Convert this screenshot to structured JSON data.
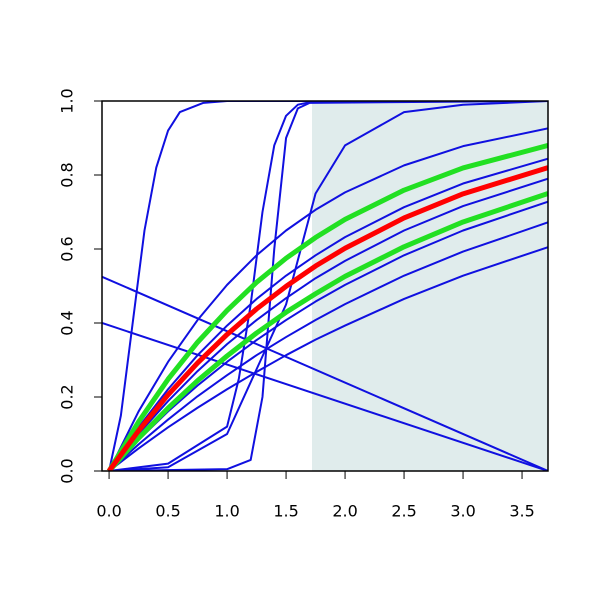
{
  "chart_data": {
    "type": "line",
    "xlim": [
      -0.06,
      3.72
    ],
    "ylim": [
      0,
      1
    ],
    "xticks": [
      {
        "value": 0,
        "label": "0.0"
      },
      0.5,
      {
        "value": 1,
        "label": "1.0"
      },
      1.5,
      {
        "value": 2,
        "label": "2.0"
      },
      2.5,
      {
        "value": 3,
        "label": "3.0"
      },
      3.5
    ],
    "yticks": [
      {
        "value": 0,
        "label": "0.0"
      },
      0.2,
      0.4,
      0.6,
      0.8,
      {
        "value": 1,
        "label": "1.0"
      }
    ],
    "shaded_region": {
      "x": [
        1.72,
        3.72
      ],
      "color": "#e0ecec"
    },
    "x": [
      0,
      0.25,
      0.5,
      0.75,
      1,
      1.25,
      1.5,
      1.75,
      2,
      2.5,
      3,
      3.72
    ],
    "series": [
      {
        "color": "#1010e0",
        "values": [
          0,
          0.061,
          0.118,
          0.171,
          0.221,
          0.268,
          0.313,
          0.355,
          0.393,
          0.465,
          0.528,
          0.605
        ]
      },
      {
        "color": "#1010e0",
        "values": [
          0,
          0.072,
          0.139,
          0.202,
          0.259,
          0.313,
          0.362,
          0.408,
          0.451,
          0.528,
          0.593,
          0.672
        ]
      },
      {
        "color": "#1010e0",
        "values": [
          0,
          0.084,
          0.161,
          0.231,
          0.295,
          0.354,
          0.408,
          0.458,
          0.503,
          0.583,
          0.65,
          0.728
        ]
      },
      {
        "color": "#1010e0",
        "values": [
          0,
          0.1,
          0.189,
          0.27,
          0.343,
          0.408,
          0.467,
          0.521,
          0.568,
          0.65,
          0.716,
          0.79
        ]
      },
      {
        "color": "#1010e0",
        "values": [
          0,
          0.118,
          0.221,
          0.313,
          0.393,
          0.465,
          0.528,
          0.583,
          0.632,
          0.713,
          0.777,
          0.844
        ]
      },
      {
        "color": "#1010e0",
        "values": [
          0,
          0.161,
          0.295,
          0.408,
          0.503,
          0.583,
          0.65,
          0.706,
          0.753,
          0.826,
          0.878,
          0.926
        ]
      },
      {
        "color": "#1010e0",
        "x": [
          0,
          0.1,
          0.2,
          0.3,
          0.4,
          0.5,
          0.6,
          0.8,
          1,
          3.72
        ],
        "values": [
          0,
          0.15,
          0.4,
          0.65,
          0.82,
          0.92,
          0.97,
          0.995,
          1,
          1
        ]
      },
      {
        "color": "#1010e0",
        "x": [
          0,
          1,
          1.2,
          1.3,
          1.4,
          1.5,
          1.6,
          1.7,
          3.72
        ],
        "values": [
          0,
          0.005,
          0.03,
          0.2,
          0.6,
          0.9,
          0.98,
          0.995,
          1
        ]
      },
      {
        "color": "#1010e0",
        "x": [
          0,
          0.5,
          1,
          1.1,
          1.2,
          1.3,
          1.4,
          1.5,
          1.6,
          1.75,
          3.72
        ],
        "values": [
          0,
          0.02,
          0.12,
          0.25,
          0.45,
          0.7,
          0.88,
          0.96,
          0.99,
          1,
          1
        ]
      },
      {
        "color": "#1010e0",
        "x": [
          0,
          0.5,
          1,
          1.5,
          1.75,
          2,
          2.5,
          3,
          3.72
        ],
        "values": [
          0,
          0.01,
          0.1,
          0.45,
          0.75,
          0.88,
          0.97,
          0.99,
          1
        ]
      },
      {
        "color": "#1010e0",
        "x": [
          -0.06,
          3.72
        ],
        "values": [
          0.525,
          0
        ]
      },
      {
        "color": "#1010e0",
        "x": [
          -0.06,
          3.72
        ],
        "values": [
          0.4,
          0
        ]
      },
      {
        "color": "#22e022",
        "bold": true,
        "values": [
          0,
          0.133,
          0.248,
          0.348,
          0.434,
          0.51,
          0.575,
          0.631,
          0.68,
          0.759,
          0.819,
          0.88
        ]
      },
      {
        "color": "#22e022",
        "bold": true,
        "values": [
          0,
          0.089,
          0.17,
          0.244,
          0.311,
          0.373,
          0.429,
          0.479,
          0.526,
          0.606,
          0.673,
          0.75
        ]
      },
      {
        "color": "#ff0000",
        "bold": true,
        "values": [
          0,
          0.109,
          0.206,
          0.292,
          0.369,
          0.438,
          0.499,
          0.554,
          0.602,
          0.684,
          0.749,
          0.82
        ]
      }
    ]
  }
}
